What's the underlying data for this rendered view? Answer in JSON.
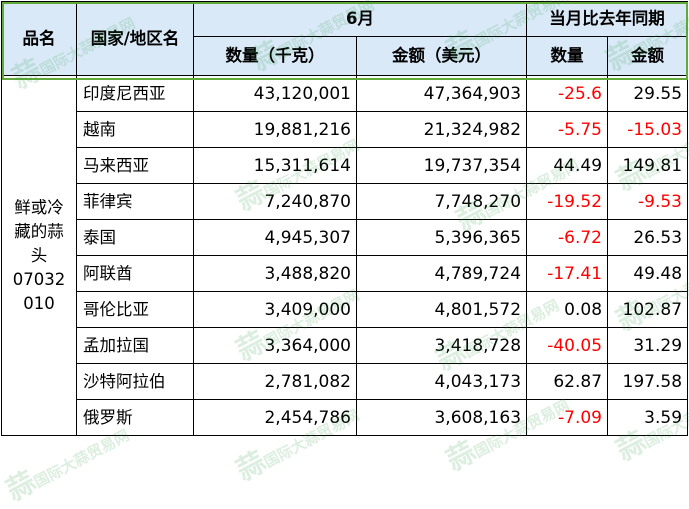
{
  "header": {
    "product": "品名",
    "country": "国家/地区名",
    "month": "6月",
    "yoy": "当月比去年同期",
    "quantity": "数量（千克）",
    "amount": "金额（美元）",
    "yoy_quantity": "数量",
    "yoy_amount": "金额"
  },
  "product": {
    "line1": "鲜或冷",
    "line2": "藏的蒜",
    "line3": "头",
    "line4": "07032",
    "line5": "010"
  },
  "rows": [
    {
      "country": "印度尼西亚",
      "quantity": "43,120,001",
      "amount": "47,364,903",
      "yoy_qty": "-25.6",
      "yoy_amt": "29.55"
    },
    {
      "country": "越南",
      "quantity": "19,881,216",
      "amount": "21,324,982",
      "yoy_qty": "-5.75",
      "yoy_amt": "-15.03"
    },
    {
      "country": "马来西亚",
      "quantity": "15,311,614",
      "amount": "19,737,354",
      "yoy_qty": "44.49",
      "yoy_amt": "149.81"
    },
    {
      "country": "菲律宾",
      "quantity": "7,240,870",
      "amount": "7,748,270",
      "yoy_qty": "-19.52",
      "yoy_amt": "-9.53"
    },
    {
      "country": "泰国",
      "quantity": "4,945,307",
      "amount": "5,396,365",
      "yoy_qty": "-6.72",
      "yoy_amt": "26.53"
    },
    {
      "country": "阿联酋",
      "quantity": "3,488,820",
      "amount": "4,789,724",
      "yoy_qty": "-17.41",
      "yoy_amt": "49.48"
    },
    {
      "country": "哥伦比亚",
      "quantity": "3,409,000",
      "amount": "4,801,572",
      "yoy_qty": "0.08",
      "yoy_amt": "102.87"
    },
    {
      "country": "孟加拉国",
      "quantity": "3,364,000",
      "amount": "3,418,728",
      "yoy_qty": "-40.05",
      "yoy_amt": "31.29"
    },
    {
      "country": "沙特阿拉伯",
      "quantity": "2,781,082",
      "amount": "4,043,173",
      "yoy_qty": "62.87",
      "yoy_amt": "197.58"
    },
    {
      "country": "俄罗斯",
      "quantity": "2,454,786",
      "amount": "3,608,163",
      "yoy_qty": "-7.09",
      "yoy_amt": "3.59"
    }
  ],
  "watermark": {
    "logo": "蒜",
    "text": "国际大蒜贸易网"
  },
  "colors": {
    "header_bg": "#d9e9f8",
    "negative": "#ff0000",
    "frame": "#61a93a",
    "watermark": "#2e9a3c"
  }
}
